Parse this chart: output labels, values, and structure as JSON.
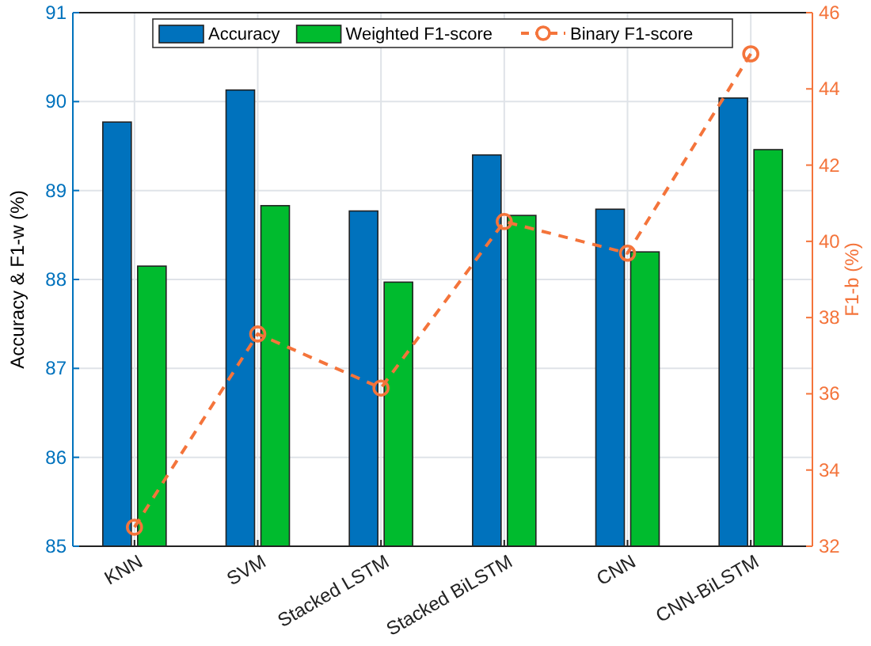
{
  "chart_data": {
    "type": "bar",
    "categories": [
      "KNN",
      "SVM",
      "Stacked LSTM",
      "Stacked BiLSTM",
      "CNN",
      "CNN-BiLSTM"
    ],
    "ylabel": "Accuracy & F1-w (%)",
    "y2label": "F1-b (%)",
    "series": [
      {
        "name": "Accuracy",
        "color": "#0072bd",
        "values": [
          89.77,
          90.13,
          88.77,
          89.4,
          88.79,
          90.04
        ]
      },
      {
        "name": "Weighted F1-score",
        "color": "#00bb2e",
        "values": [
          88.15,
          88.83,
          87.97,
          88.72,
          88.31,
          89.46
        ]
      },
      {
        "name": "Binary F1-score",
        "type": "line",
        "axis": "y2",
        "color": "#f4743b",
        "marker": "circle",
        "line_style": "dashed",
        "values": [
          32.5,
          37.57,
          36.15,
          40.52,
          39.69,
          44.92
        ]
      }
    ],
    "ylim": [
      85,
      91
    ],
    "yticks": [
      85,
      86,
      87,
      88,
      89,
      90,
      91
    ],
    "y2lim": [
      32,
      46
    ],
    "y2ticks": [
      32,
      34,
      36,
      38,
      40,
      42,
      44,
      46
    ],
    "grid": true,
    "legend": "top"
  }
}
